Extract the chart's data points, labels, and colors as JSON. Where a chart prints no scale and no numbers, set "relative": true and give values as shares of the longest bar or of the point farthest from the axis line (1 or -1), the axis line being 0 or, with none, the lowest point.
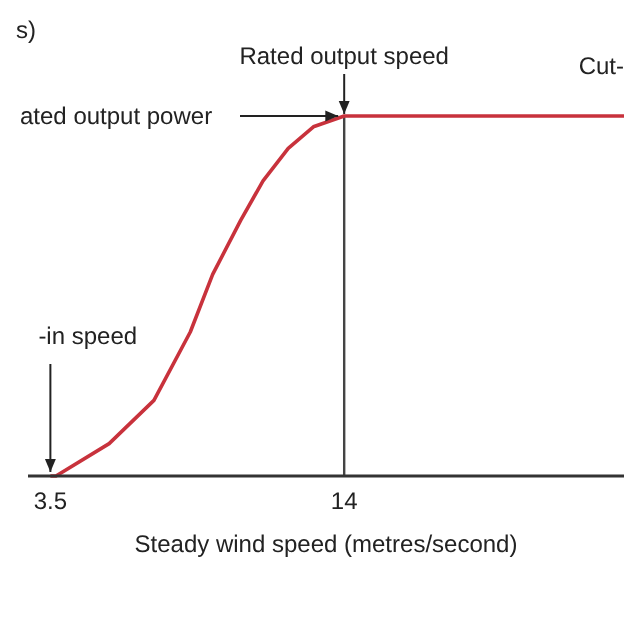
{
  "chart_data": {
    "type": "line",
    "relative": true,
    "xlabel": "Steady wind speed (metres/second)",
    "ylabel": "s)",
    "x": [
      3.5,
      3.7,
      5.6,
      7.2,
      8.5,
      9.3,
      10.3,
      11.1,
      12.0,
      12.9,
      14,
      24
    ],
    "series": [
      {
        "color": "#c8323c",
        "values": [
          0,
          0,
          0.09,
          0.21,
          0.4,
          0.56,
          0.71,
          0.82,
          0.91,
          0.97,
          1,
          1
        ]
      }
    ],
    "xlim": [
      2.7,
      24
    ],
    "xticks": [
      3.5,
      14
    ],
    "marker": "none",
    "line_style": "solid",
    "ref_lines": [
      {
        "axis": "x",
        "value": 14,
        "label": "Rated output speed",
        "color": "#444444"
      }
    ],
    "annotations": [
      {
        "text": "ated output power",
        "x": 14,
        "y": 1
      },
      {
        "text": "-in speed",
        "x": 3.5,
        "y": 0
      },
      "Cut-"
    ]
  }
}
